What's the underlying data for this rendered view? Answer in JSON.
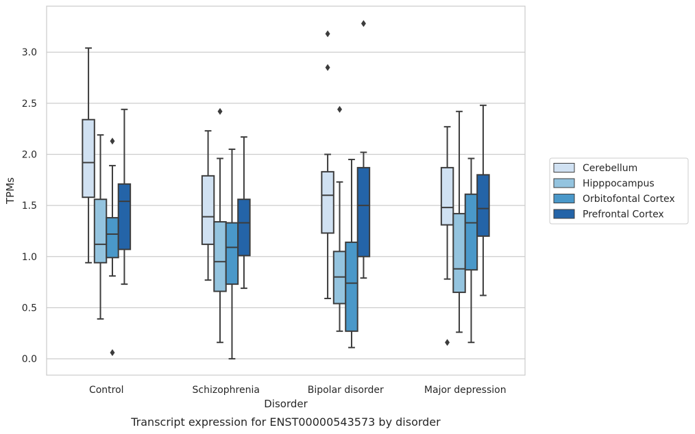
{
  "chart_data": {
    "type": "box",
    "title": "",
    "caption": "Transcript expression for ENST00000543573 by disorder",
    "xlabel": "Disorder",
    "ylabel": "TPMs",
    "ylim": [
      -0.16,
      3.45
    ],
    "yticks": [
      0.0,
      0.5,
      1.0,
      1.5,
      2.0,
      2.5,
      3.0
    ],
    "ytick_labels": [
      "0.0",
      "0.5",
      "1.0",
      "1.5",
      "2.0",
      "2.5",
      "3.0"
    ],
    "grid": "horizontal",
    "legend_position": "right",
    "categories": [
      "Control",
      "Schizophrenia",
      "Bipolar disorder",
      "Major depression"
    ],
    "series": [
      {
        "name": "Cerebellum",
        "color": "#d0e1f2",
        "boxes": [
          {
            "whislo": 0.94,
            "q1": 1.58,
            "med": 1.92,
            "q3": 2.34,
            "whishi": 3.04,
            "fliers": []
          },
          {
            "whislo": 0.77,
            "q1": 1.12,
            "med": 1.39,
            "q3": 1.79,
            "whishi": 2.23,
            "fliers": []
          },
          {
            "whislo": 0.59,
            "q1": 1.23,
            "med": 1.6,
            "q3": 1.83,
            "whishi": 2.0,
            "fliers": [
              2.85,
              3.18
            ]
          },
          {
            "whislo": 0.78,
            "q1": 1.31,
            "med": 1.48,
            "q3": 1.87,
            "whishi": 2.27,
            "fliers": [
              0.16
            ]
          }
        ]
      },
      {
        "name": "Hipppocampus",
        "color": "#94c4df",
        "boxes": [
          {
            "whislo": 0.39,
            "q1": 0.94,
            "med": 1.12,
            "q3": 1.56,
            "whishi": 2.19,
            "fliers": []
          },
          {
            "whislo": 0.16,
            "q1": 0.66,
            "med": 0.95,
            "q3": 1.34,
            "whishi": 1.96,
            "fliers": [
              2.42
            ]
          },
          {
            "whislo": 0.27,
            "q1": 0.54,
            "med": 0.8,
            "q3": 1.05,
            "whishi": 1.73,
            "fliers": [
              2.44
            ]
          },
          {
            "whislo": 0.26,
            "q1": 0.65,
            "med": 0.88,
            "q3": 1.42,
            "whishi": 2.42,
            "fliers": []
          }
        ]
      },
      {
        "name": "Orbitofontal Cortex",
        "color": "#4a98c9",
        "boxes": [
          {
            "whislo": 0.81,
            "q1": 0.99,
            "med": 1.22,
            "q3": 1.38,
            "whishi": 1.89,
            "fliers": [
              0.06,
              2.13
            ]
          },
          {
            "whislo": 0.0,
            "q1": 0.73,
            "med": 1.09,
            "q3": 1.33,
            "whishi": 2.05,
            "fliers": []
          },
          {
            "whislo": 0.11,
            "q1": 0.27,
            "med": 0.74,
            "q3": 1.14,
            "whishi": 1.95,
            "fliers": []
          },
          {
            "whislo": 0.16,
            "q1": 0.87,
            "med": 1.33,
            "q3": 1.61,
            "whishi": 1.96,
            "fliers": []
          }
        ]
      },
      {
        "name": "Prefrontal Cortex",
        "color": "#2464a8",
        "boxes": [
          {
            "whislo": 0.73,
            "q1": 1.07,
            "med": 1.54,
            "q3": 1.71,
            "whishi": 2.44,
            "fliers": []
          },
          {
            "whislo": 0.69,
            "q1": 1.01,
            "med": 1.33,
            "q3": 1.56,
            "whishi": 2.17,
            "fliers": []
          },
          {
            "whislo": 0.79,
            "q1": 1.0,
            "med": 1.5,
            "q3": 1.87,
            "whishi": 2.02,
            "fliers": [
              3.28
            ]
          },
          {
            "whislo": 0.62,
            "q1": 1.2,
            "med": 1.47,
            "q3": 1.8,
            "whishi": 2.48,
            "fliers": []
          }
        ]
      }
    ]
  }
}
